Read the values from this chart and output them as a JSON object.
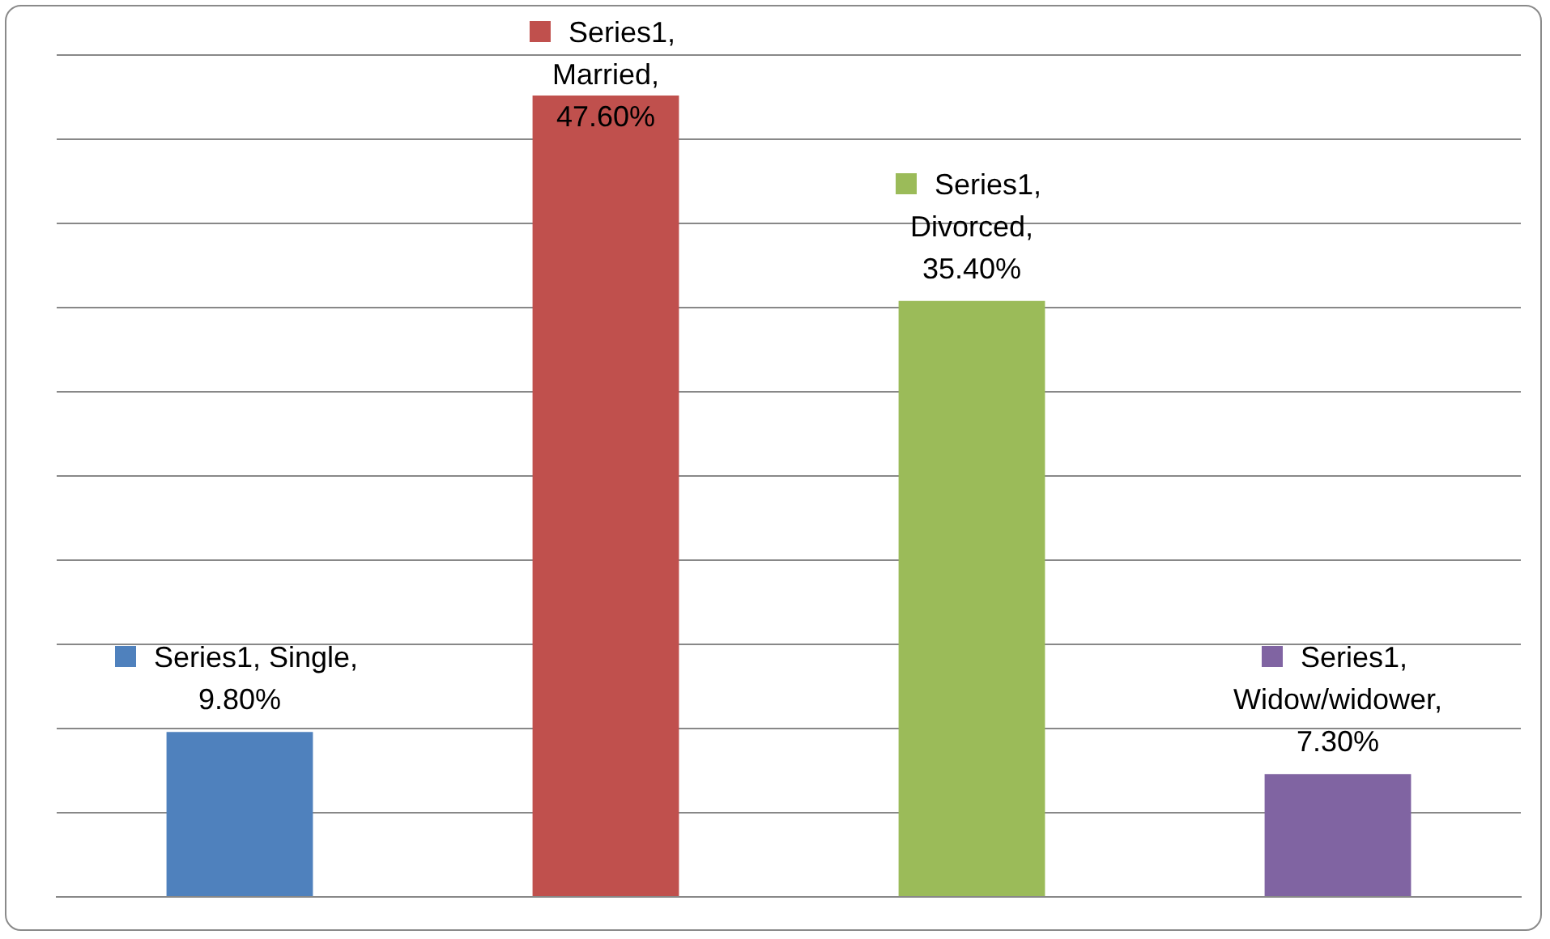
{
  "chart_data": {
    "type": "bar",
    "categories": [
      null,
      null,
      null,
      null
    ],
    "series": [
      {
        "values": [
          9.8,
          47.6,
          35.4,
          7.3
        ],
        "colors": [
          "#4f81bd",
          "#c0504d",
          "#9bbb59",
          "#8064a2"
        ],
        "value_labels": [
          "Series1, Single, 9.80%",
          "Series1, Married, 47.60%",
          "Series1, Divorced, 35.40%",
          "Series1, Widow/widower, 7.30%"
        ]
      }
    ],
    "ylim": [
      0,
      50
    ],
    "yticks": [
      {
        "value": 0,
        "label": null
      },
      {
        "value": 5,
        "label": null
      },
      {
        "value": 10,
        "label": null
      },
      {
        "value": 15,
        "label": null
      },
      {
        "value": 20,
        "label": null
      },
      {
        "value": 25,
        "label": null
      },
      {
        "value": 30,
        "label": null
      },
      {
        "value": 35,
        "label": null
      },
      {
        "value": 40,
        "label": null
      },
      {
        "value": 45,
        "label": null
      },
      {
        "value": 50,
        "label": null
      }
    ],
    "grid": "y",
    "legend": false,
    "tick_labels": false
  }
}
